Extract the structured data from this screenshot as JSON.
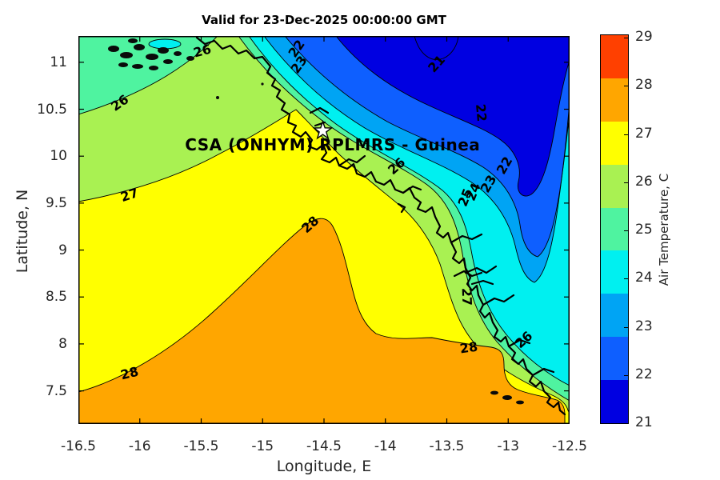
{
  "title": "Valid for 23-Dec-2025 00:00:00 GMT",
  "overlay": {
    "site_label": "CSA (ONHYM) RPLMRS  - Guinea",
    "site_label_lon": -14.43,
    "site_label_lat": 10.12
  },
  "axes": {
    "x": {
      "label": "Longitude, E",
      "ticks": [
        "-16.5",
        "-16",
        "-15.5",
        "-15",
        "-14.5",
        "-14",
        "-13.5",
        "-13",
        "-12.5"
      ],
      "tick_values": [
        -16.5,
        -16,
        -15.5,
        -15,
        -14.5,
        -14,
        -13.5,
        -13,
        -12.5
      ],
      "range": [
        -16.5,
        -12.5
      ]
    },
    "y": {
      "label": "Latitude, N",
      "ticks": [
        "11",
        "10.5",
        "10",
        "9.5",
        "9",
        "8.5",
        "8",
        "7.5"
      ],
      "tick_values": [
        11,
        10.5,
        10,
        9.5,
        9,
        8.5,
        8,
        7.5
      ],
      "range": [
        7.147,
        11.28
      ]
    }
  },
  "colorbar": {
    "label": "Air Temperature, C",
    "tick_values": [
      29,
      28,
      27,
      26,
      25,
      24,
      23,
      22,
      21
    ],
    "colors_top_to_bottom": [
      "#FF4000",
      "#FFA600",
      "#FFFF00",
      "#A9F152",
      "#4FF3A0",
      "#00F0F0",
      "#00A4F4",
      "#0E5FFF",
      "#0000E1"
    ]
  },
  "map_band_colors": {
    "orange_28": "#FFA600",
    "yellow_27": "#FFFF00",
    "greenyellow_26": "#A9F152",
    "aquamarine_25": "#4FF3A0",
    "cyan_24": "#00F0F0",
    "azure_23": "#00A4F4",
    "blue_22": "#0E5FFF",
    "darkblue_21": "#0000E1",
    "coast": "#000000"
  },
  "chart_data": {
    "type": "filled_contour",
    "title": "Valid for 23-Dec-2025 00:00:00 GMT",
    "annotation": "CSA (ONHYM) RPLMRS  - Guinea",
    "xlabel": "Longitude, E",
    "ylabel": "Latitude, N",
    "colorbar_label": "Air Temperature, C",
    "units": "degrees C",
    "xlim": [
      -16.5,
      -12.5
    ],
    "ylim": [
      7.15,
      11.28
    ],
    "levels": [
      21,
      22,
      23,
      24,
      25,
      26,
      27,
      28,
      29
    ],
    "band_colors_low_to_high": [
      "#0000E1",
      "#0E5FFF",
      "#00A4F4",
      "#00F0F0",
      "#4FF3A0",
      "#A9F152",
      "#FFFF00",
      "#FFA600",
      "#FF4000"
    ],
    "gradient_description": "Warm air (28C+) over the southwest/offshore lower-left, cooling northeastward across coast-parallel bands to a cold 21-22C tongue in the upper right (inland Guinea)",
    "star_marker": {
      "lon": -14.51,
      "lat": 10.27
    },
    "contour_labels": [
      {
        "value": 26,
        "lon": -15.49,
        "lat": 11.12,
        "rot": -15
      },
      {
        "value": 26,
        "lon": -16.16,
        "lat": 10.56,
        "rot": -35
      },
      {
        "value": 22,
        "lon": -14.72,
        "lat": 11.14,
        "rot": -55
      },
      {
        "value": 23,
        "lon": -14.7,
        "lat": 10.97,
        "rot": -55
      },
      {
        "value": 21,
        "lon": -13.58,
        "lat": 10.98,
        "rot": -48
      },
      {
        "value": 22,
        "lon": -13.22,
        "lat": 10.46,
        "rot": 85
      },
      {
        "value": 26,
        "lon": -13.91,
        "lat": 9.89,
        "rot": -42
      },
      {
        "value": 24,
        "lon": -13.28,
        "lat": 9.62,
        "rot": -68
      },
      {
        "value": 25,
        "lon": -13.35,
        "lat": 9.56,
        "rot": -68
      },
      {
        "value": 23,
        "lon": -13.16,
        "lat": 9.7,
        "rot": -60
      },
      {
        "value": 22,
        "lon": -13.03,
        "lat": 9.9,
        "rot": -60
      },
      {
        "value": 27,
        "lon": -16.08,
        "lat": 9.58,
        "rot": -18
      },
      {
        "value": 28,
        "lon": -14.61,
        "lat": 9.27,
        "rot": -42
      },
      {
        "value": 28,
        "lon": -16.08,
        "lat": 7.68,
        "rot": -14
      },
      {
        "value": 27,
        "lon": -13.34,
        "lat": 8.5,
        "rot": 88
      },
      {
        "value": 26,
        "lon": -12.87,
        "lat": 8.04,
        "rot": -42
      },
      {
        "value": 28,
        "lon": -13.32,
        "lat": 7.96,
        "rot": -8
      }
    ]
  }
}
